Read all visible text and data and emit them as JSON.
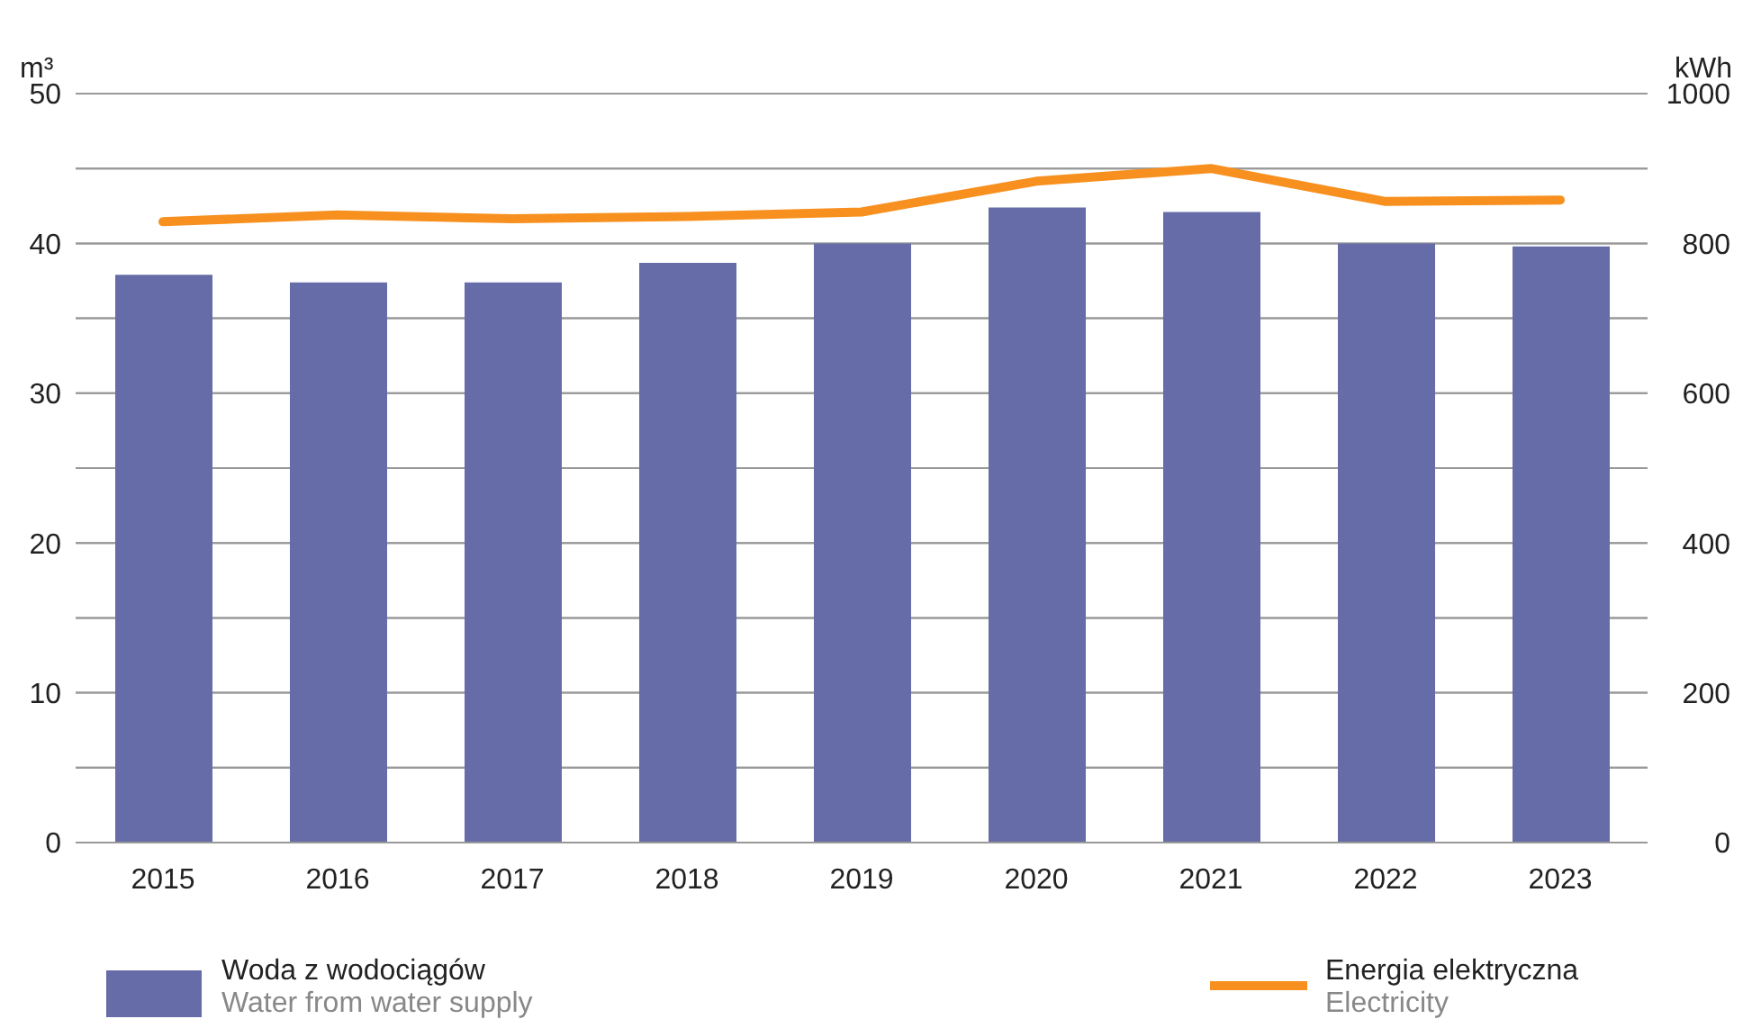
{
  "chart_data": {
    "type": "bar",
    "ylabel": "m³",
    "y2label": "kWh",
    "categories": [
      "2015",
      "2016",
      "2017",
      "2018",
      "2019",
      "2020",
      "2021",
      "2022",
      "2023"
    ],
    "series": [
      {
        "name": "Woda z wodociągów\nWater from water supply",
        "color": "#666ca8",
        "values": [
          37.9,
          37.4,
          37.4,
          38.7,
          40.0,
          42.4,
          42.1,
          40.0,
          39.8
        ]
      },
      {
        "name": "Energia elektryczna\nElectricity",
        "type": "line",
        "axis": "y2",
        "color": "#f7901e",
        "values": [
          829,
          838,
          833,
          836,
          842,
          883,
          900,
          856,
          858
        ]
      }
    ],
    "ylim": [
      0,
      50
    ],
    "yticks": [
      0,
      {
        "value": 5,
        "label": null
      },
      10,
      {
        "value": 15,
        "label": null
      },
      20,
      {
        "value": 25,
        "label": null
      },
      30,
      {
        "value": 35,
        "label": null
      },
      40,
      {
        "value": 45,
        "label": null
      },
      50
    ],
    "y2lim": [
      0,
      1000
    ],
    "y2ticks": [
      0,
      {
        "value": 100,
        "label": null
      },
      200,
      {
        "value": 300,
        "label": null
      },
      400,
      {
        "value": 500,
        "label": null
      },
      600,
      {
        "value": 700,
        "label": null
      },
      800,
      {
        "value": 900,
        "label": null
      },
      1000
    ],
    "grid": "y",
    "legend": "bottom",
    "marker": "none"
  }
}
